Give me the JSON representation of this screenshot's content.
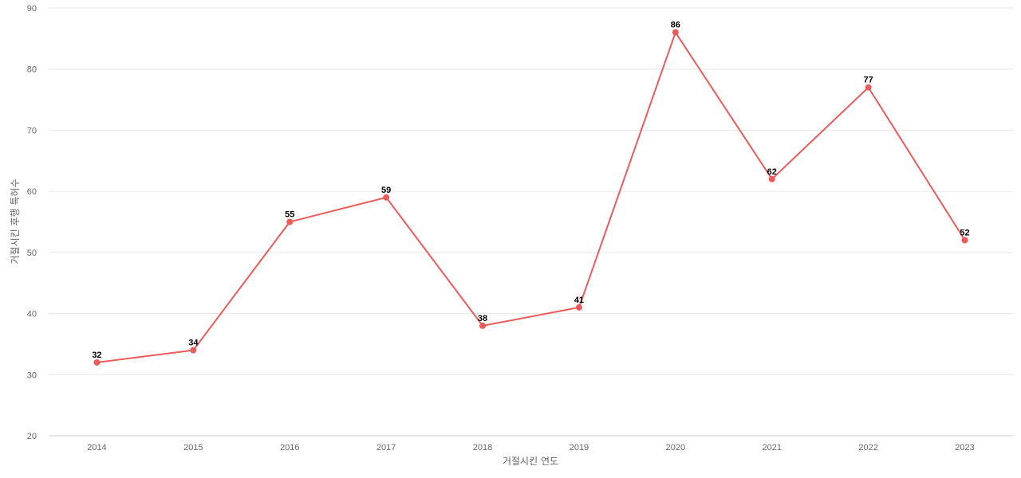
{
  "chart_data": {
    "type": "line",
    "title": "",
    "xlabel": "거절시킨 연도",
    "ylabel": "거절시킨 후행 특허수",
    "categories": [
      "2014",
      "2015",
      "2016",
      "2017",
      "2018",
      "2019",
      "2020",
      "2021",
      "2022",
      "2023"
    ],
    "series": [
      {
        "values": [
          32,
          34,
          55,
          59,
          38,
          41,
          86,
          62,
          77,
          52
        ],
        "color": "#eb5b5b"
      }
    ],
    "ylim": [
      20,
      90
    ],
    "yticks": [
      20,
      30,
      40,
      50,
      60,
      70,
      80,
      90
    ],
    "grid": true,
    "data_labels": true,
    "legend": "none"
  }
}
